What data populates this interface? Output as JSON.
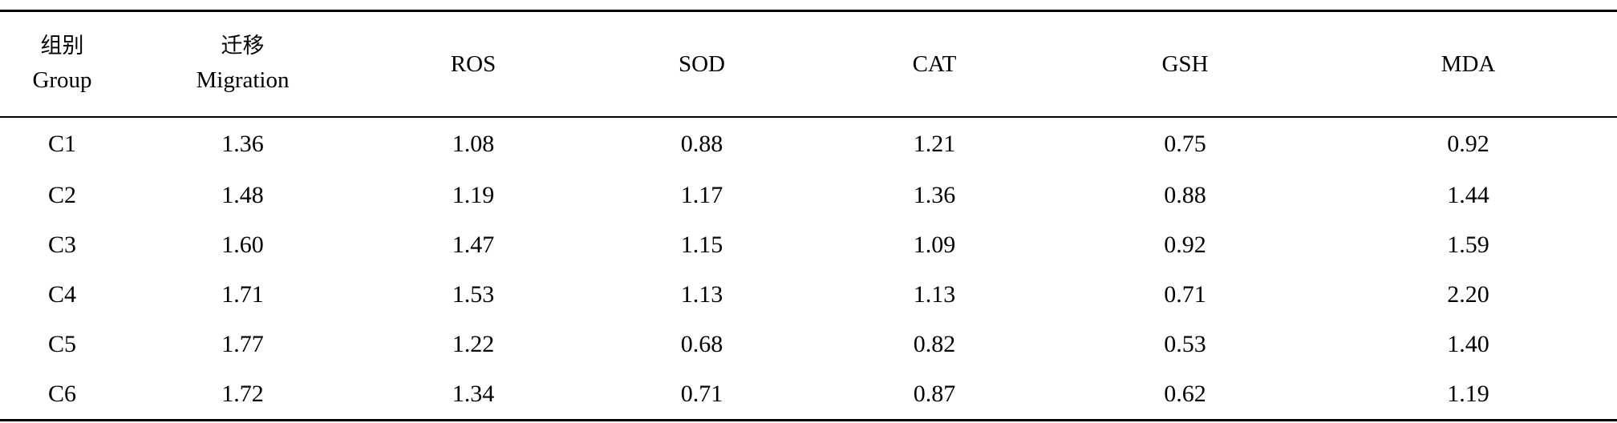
{
  "table": {
    "columns": [
      {
        "zh": "组别",
        "en": "Group"
      },
      {
        "zh": "迁移",
        "en": "Migration"
      },
      {
        "zh": "",
        "en": "ROS"
      },
      {
        "zh": "",
        "en": "SOD"
      },
      {
        "zh": "",
        "en": "CAT"
      },
      {
        "zh": "",
        "en": "GSH"
      },
      {
        "zh": "",
        "en": "MDA"
      }
    ],
    "rows": [
      [
        "C1",
        "1.36",
        "1.08",
        "0.88",
        "1.21",
        "0.75",
        "0.92"
      ],
      [
        "C2",
        "1.48",
        "1.19",
        "1.17",
        "1.36",
        "0.88",
        "1.44"
      ],
      [
        "C3",
        "1.60",
        "1.47",
        "1.15",
        "1.09",
        "0.92",
        "1.59"
      ],
      [
        "C4",
        "1.71",
        "1.53",
        "1.13",
        "1.13",
        "0.71",
        "2.20"
      ],
      [
        "C5",
        "1.77",
        "1.22",
        "0.68",
        "0.82",
        "0.53",
        "1.40"
      ],
      [
        "C6",
        "1.72",
        "1.34",
        "0.71",
        "0.87",
        "0.62",
        "1.19"
      ]
    ]
  }
}
